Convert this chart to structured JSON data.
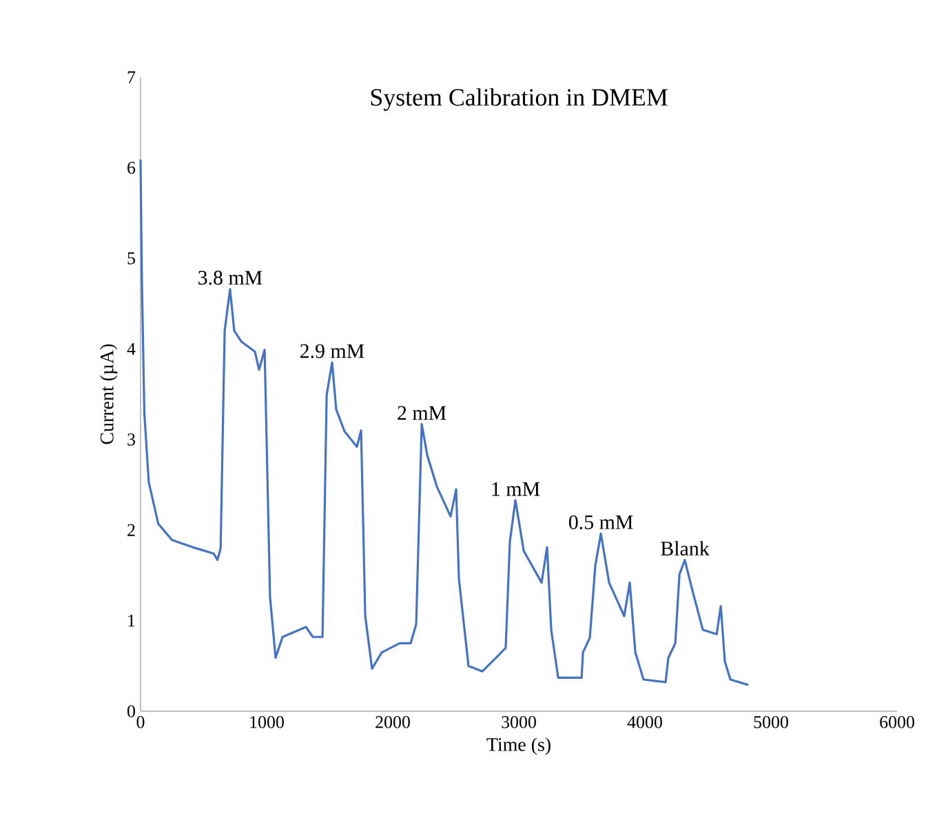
{
  "chart_data": {
    "type": "line",
    "title": "System Calibration in DMEM",
    "xlabel": "Time (s)",
    "ylabel": "Current (µA)",
    "xlim": [
      0,
      6000
    ],
    "xticks": [
      0,
      1000,
      2000,
      3000,
      4000,
      5000,
      6000
    ],
    "ylim": [
      0,
      7
    ],
    "yticks": [
      0,
      1,
      2,
      3,
      4,
      5,
      6,
      7
    ],
    "grid": false,
    "series": [
      {
        "color": "#4472c4",
        "x": [
          0,
          10,
          30,
          65,
          140,
          250,
          415,
          580,
          610,
          635,
          667,
          710,
          743,
          800,
          907,
          940,
          984,
          1027,
          1071,
          1126,
          1312,
          1366,
          1443,
          1476,
          1519,
          1552,
          1618,
          1716,
          1749,
          1782,
          1836,
          1913,
          2055,
          2142,
          2186,
          2230,
          2273,
          2350,
          2459,
          2503,
          2525,
          2601,
          2711,
          2820,
          2896,
          2929,
          2973,
          3039,
          3181,
          3224,
          3257,
          3312,
          3498,
          3509,
          3563,
          3607,
          3651,
          3716,
          3836,
          3880,
          3924,
          3989,
          4164,
          4186,
          4241,
          4274,
          4317,
          4372,
          4459,
          4569,
          4602,
          4634,
          4678,
          4820
        ],
        "values": [
          6.09,
          4.8,
          3.29,
          2.53,
          2.07,
          1.89,
          1.81,
          1.74,
          1.67,
          1.8,
          4.2,
          4.66,
          4.2,
          4.08,
          3.97,
          3.77,
          3.99,
          1.26,
          0.59,
          0.82,
          0.93,
          0.82,
          0.82,
          3.49,
          3.85,
          3.33,
          3.09,
          2.92,
          3.1,
          1.05,
          0.47,
          0.65,
          0.75,
          0.75,
          0.96,
          3.17,
          2.83,
          2.48,
          2.15,
          2.45,
          1.46,
          0.5,
          0.44,
          0.59,
          0.7,
          1.87,
          2.33,
          1.77,
          1.42,
          1.81,
          0.9,
          0.37,
          0.37,
          0.65,
          0.81,
          1.61,
          1.96,
          1.42,
          1.05,
          1.42,
          0.65,
          0.35,
          0.32,
          0.59,
          0.75,
          1.51,
          1.67,
          1.36,
          0.9,
          0.85,
          1.16,
          0.55,
          0.35,
          0.29
        ]
      }
    ],
    "annotations": [
      {
        "text": "3.8 mM",
        "x": 710,
        "y": 4.66
      },
      {
        "text": "2.9 mM",
        "x": 1519,
        "y": 3.85
      },
      {
        "text": "2 mM",
        "x": 2230,
        "y": 3.17
      },
      {
        "text": "1 mM",
        "x": 2973,
        "y": 2.33
      },
      {
        "text": "0.5 mM",
        "x": 3651,
        "y": 1.96
      },
      {
        "text": "Blank",
        "x": 4317,
        "y": 1.67
      }
    ]
  }
}
